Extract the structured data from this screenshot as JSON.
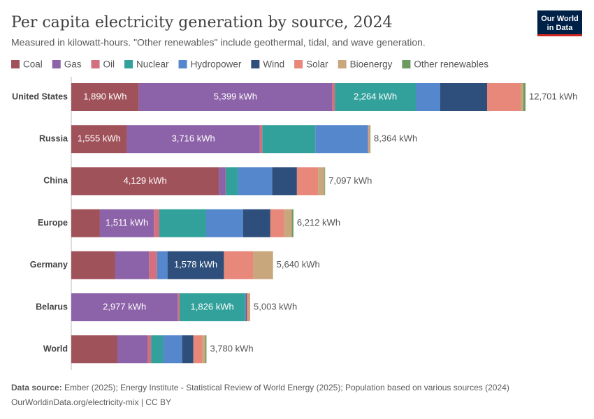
{
  "chart_data": {
    "type": "bar",
    "orientation": "horizontal",
    "title": "Per capita electricity generation by source, 2024",
    "subtitle": "Measured in kilowatt-hours. \"Other renewables\" include geothermal, tidal, and wave generation.",
    "categories": [
      "United States",
      "Russia",
      "China",
      "Europe",
      "Germany",
      "Belarus",
      "World"
    ],
    "series": [
      {
        "name": "Coal",
        "color": "#a0525a",
        "values": [
          1890,
          1555,
          4129,
          800,
          1230,
          0,
          1290
        ],
        "value_labels": [
          "1,890 kWh",
          "1,555 kWh",
          "4,129 kWh",
          null,
          null,
          null,
          null
        ]
      },
      {
        "name": "Gas",
        "color": "#8c62a8",
        "values": [
          5399,
          3716,
          180,
          1511,
          940,
          2977,
          840
        ],
        "value_labels": [
          "5,399 kWh",
          "3,716 kWh",
          null,
          "1,511 kWh",
          null,
          "2,977 kWh",
          null
        ]
      },
      {
        "name": "Oil",
        "color": "#d2707f",
        "values": [
          80,
          70,
          10,
          150,
          230,
          50,
          100
        ],
        "value_labels": [
          null,
          null,
          null,
          null,
          null,
          null,
          null
        ]
      },
      {
        "name": "Nuclear",
        "color": "#32a19b",
        "values": [
          2264,
          1485,
          340,
          1310,
          0,
          1826,
          330
        ],
        "value_labels": [
          "2,264 kWh",
          null,
          null,
          null,
          null,
          "1,826 kWh",
          null
        ]
      },
      {
        "name": "Hydropower",
        "color": "#5487cb",
        "values": [
          684,
          1465,
          960,
          1035,
          290,
          30,
          540
        ],
        "value_labels": [
          null,
          null,
          null,
          null,
          null,
          null,
          null
        ]
      },
      {
        "name": "Wind",
        "color": "#2e4e7b",
        "values": [
          1309,
          5,
          690,
          760,
          1578,
          20,
          310
        ],
        "value_labels": [
          null,
          null,
          null,
          null,
          "1,578 kWh",
          null,
          null
        ]
      },
      {
        "name": "Solar",
        "color": "#e8887a",
        "values": [
          938,
          20,
          590,
          390,
          820,
          50,
          260
        ],
        "value_labels": [
          null,
          null,
          null,
          null,
          null,
          null,
          null
        ]
      },
      {
        "name": "Bioenergy",
        "color": "#c9a77c",
        "values": [
          78,
          30,
          180,
          210,
          550,
          50,
          80
        ],
        "value_labels": [
          null,
          null,
          null,
          null,
          null,
          null,
          null
        ]
      },
      {
        "name": "Other renewables",
        "color": "#6c9b60",
        "values": [
          59,
          18,
          18,
          46,
          2,
          0,
          30
        ],
        "value_labels": [
          null,
          null,
          null,
          null,
          null,
          null,
          null
        ]
      }
    ],
    "totals": [
      12701,
      8364,
      7097,
      6212,
      5640,
      5003,
      3780
    ],
    "total_labels": [
      "12,701 kWh",
      "8,364 kWh",
      "7,097 kWh",
      "6,212 kWh",
      "5,640 kWh",
      "5,003 kWh",
      "3,780 kWh"
    ],
    "legend": "top"
  },
  "logo": [
    "Our World",
    "in Data"
  ],
  "footer": {
    "source_label": "Data source:",
    "source": "Ember (2025); Energy Institute - Statistical Review of World Energy (2025); Population based on various sources (2024)",
    "url": "OurWorldinData.org/electricity-mix | CC BY"
  }
}
